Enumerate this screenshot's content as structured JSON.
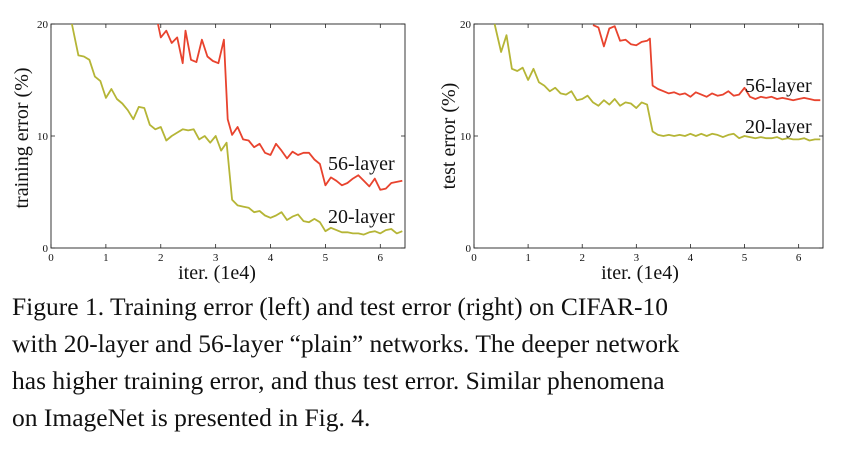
{
  "caption": {
    "lines": [
      "Figure 1. Training error (left) and test error (right) on CIFAR-10",
      "with 20-layer and 56-layer “plain” networks. The deeper network",
      "has higher training error, and thus test error. Similar phenomena",
      "on ImageNet is presented in Fig. 4."
    ]
  },
  "chart_data": [
    {
      "type": "line",
      "xlabel": "iter. (1e4)",
      "ylabel": "training error (%)",
      "xlim": [
        0,
        6.45
      ],
      "ylim": [
        0,
        20
      ],
      "xticks": [
        "0",
        "1",
        "2",
        "3",
        "4",
        "5",
        "6"
      ],
      "yticks": [
        "0",
        "10",
        "20"
      ],
      "grid": false,
      "series": [
        {
          "name": "56-layer",
          "color": "#e8432e",
          "x": [
            1.95,
            2.0,
            2.1,
            2.2,
            2.3,
            2.4,
            2.45,
            2.55,
            2.65,
            2.75,
            2.85,
            2.95,
            3.05,
            3.15,
            3.22,
            3.3,
            3.4,
            3.5,
            3.6,
            3.7,
            3.8,
            3.9,
            4.0,
            4.1,
            4.2,
            4.3,
            4.4,
            4.5,
            4.6,
            4.7,
            4.8,
            4.9,
            5.0,
            5.1,
            5.2,
            5.3,
            5.4,
            5.5,
            5.6,
            5.7,
            5.8,
            5.9,
            6.0,
            6.1,
            6.2,
            6.3,
            6.4
          ],
          "y": [
            20.0,
            18.8,
            19.4,
            18.3,
            18.8,
            16.5,
            19.4,
            16.8,
            16.6,
            18.6,
            17.1,
            16.7,
            16.5,
            18.6,
            11.5,
            10.1,
            10.8,
            9.7,
            9.6,
            9.0,
            9.3,
            8.5,
            8.3,
            9.3,
            8.7,
            8.0,
            8.6,
            8.3,
            8.5,
            8.5,
            7.9,
            7.5,
            5.6,
            6.3,
            6.0,
            5.6,
            5.8,
            6.2,
            6.5,
            6.0,
            5.5,
            6.2,
            5.2,
            5.3,
            5.8,
            5.9,
            6.0
          ]
        },
        {
          "name": "20-layer",
          "color": "#b5b536",
          "x": [
            0.38,
            0.5,
            0.6,
            0.7,
            0.8,
            0.9,
            1.0,
            1.1,
            1.2,
            1.3,
            1.4,
            1.5,
            1.6,
            1.7,
            1.8,
            1.9,
            2.0,
            2.1,
            2.2,
            2.3,
            2.4,
            2.5,
            2.6,
            2.7,
            2.8,
            2.9,
            3.0,
            3.1,
            3.2,
            3.3,
            3.4,
            3.5,
            3.6,
            3.7,
            3.8,
            3.9,
            4.0,
            4.1,
            4.2,
            4.3,
            4.4,
            4.5,
            4.6,
            4.7,
            4.8,
            4.9,
            5.0,
            5.1,
            5.2,
            5.3,
            5.4,
            5.5,
            5.6,
            5.7,
            5.8,
            5.9,
            6.0,
            6.1,
            6.2,
            6.3,
            6.4
          ],
          "y": [
            20.0,
            17.2,
            17.1,
            16.8,
            15.3,
            14.9,
            13.4,
            14.2,
            13.3,
            12.9,
            12.3,
            11.5,
            12.6,
            12.5,
            11.0,
            10.6,
            10.8,
            9.6,
            10.0,
            10.3,
            10.6,
            10.5,
            10.6,
            9.7,
            10.0,
            9.4,
            10.0,
            8.7,
            9.4,
            4.3,
            3.8,
            3.7,
            3.6,
            3.2,
            3.3,
            2.9,
            2.7,
            2.9,
            3.2,
            2.5,
            2.8,
            3.0,
            2.4,
            2.3,
            2.6,
            2.3,
            1.5,
            1.8,
            1.6,
            1.4,
            1.4,
            1.3,
            1.3,
            1.2,
            1.4,
            1.5,
            1.3,
            1.6,
            1.7,
            1.3,
            1.5
          ]
        }
      ]
    },
    {
      "type": "line",
      "xlabel": "iter. (1e4)",
      "ylabel": "test error (%)",
      "xlim": [
        0,
        6.45
      ],
      "ylim": [
        0,
        20
      ],
      "xticks": [
        "0",
        "1",
        "2",
        "3",
        "4",
        "5",
        "6"
      ],
      "yticks": [
        "0",
        "10",
        "20"
      ],
      "grid": false,
      "series": [
        {
          "name": "56-layer",
          "color": "#e8432e",
          "x": [
            2.2,
            2.3,
            2.4,
            2.5,
            2.6,
            2.7,
            2.8,
            2.9,
            3.0,
            3.1,
            3.2,
            3.25,
            3.3,
            3.4,
            3.5,
            3.6,
            3.7,
            3.8,
            3.9,
            4.0,
            4.1,
            4.2,
            4.3,
            4.4,
            4.5,
            4.6,
            4.7,
            4.8,
            4.9,
            5.0,
            5.1,
            5.2,
            5.3,
            5.4,
            5.5,
            5.6,
            5.7,
            5.8,
            5.9,
            6.0,
            6.1,
            6.2,
            6.3,
            6.4
          ],
          "y": [
            19.9,
            19.7,
            18.0,
            19.6,
            19.8,
            18.5,
            18.6,
            18.2,
            18.1,
            18.4,
            18.5,
            18.7,
            14.5,
            14.2,
            14.0,
            13.8,
            13.9,
            13.7,
            13.8,
            13.5,
            13.9,
            13.7,
            13.5,
            13.8,
            13.6,
            13.7,
            14.0,
            13.6,
            13.7,
            14.3,
            13.5,
            13.3,
            13.5,
            13.4,
            13.5,
            13.3,
            13.4,
            13.3,
            13.2,
            13.3,
            13.4,
            13.3,
            13.2,
            13.2
          ]
        },
        {
          "name": "20-layer",
          "color": "#b5b536",
          "x": [
            0.38,
            0.5,
            0.6,
            0.7,
            0.8,
            0.9,
            1.0,
            1.1,
            1.2,
            1.3,
            1.4,
            1.5,
            1.6,
            1.7,
            1.8,
            1.9,
            2.0,
            2.1,
            2.2,
            2.3,
            2.4,
            2.5,
            2.6,
            2.7,
            2.8,
            2.9,
            3.0,
            3.1,
            3.2,
            3.3,
            3.4,
            3.5,
            3.6,
            3.7,
            3.8,
            3.9,
            4.0,
            4.1,
            4.2,
            4.3,
            4.4,
            4.5,
            4.6,
            4.7,
            4.8,
            4.9,
            5.0,
            5.1,
            5.2,
            5.3,
            5.4,
            5.5,
            5.6,
            5.7,
            5.8,
            5.9,
            6.0,
            6.1,
            6.2,
            6.3,
            6.4
          ],
          "y": [
            20.0,
            17.5,
            19.0,
            16.0,
            15.8,
            16.1,
            15.0,
            16.0,
            14.8,
            14.5,
            14.0,
            14.3,
            13.8,
            13.7,
            14.0,
            13.2,
            13.3,
            13.6,
            13.0,
            12.7,
            13.2,
            12.8,
            13.3,
            12.7,
            13.0,
            12.9,
            12.5,
            13.0,
            12.8,
            10.4,
            10.1,
            10.0,
            10.1,
            10.0,
            10.1,
            10.0,
            10.2,
            10.0,
            10.2,
            10.0,
            10.2,
            10.1,
            9.9,
            10.1,
            10.2,
            9.8,
            10.0,
            9.9,
            9.8,
            9.9,
            9.8,
            9.8,
            9.9,
            9.7,
            9.8,
            9.7,
            9.7,
            9.8,
            9.6,
            9.7,
            9.7
          ]
        }
      ]
    }
  ]
}
